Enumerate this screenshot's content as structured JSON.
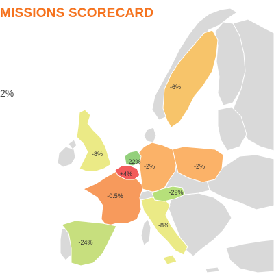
{
  "title": "MISSIONS SCORECARD",
  "side_fragment": "2%",
  "colors": {
    "background_land": "#d9d9d9",
    "sea": "#ffffff",
    "decrease_large": "#c7df7e",
    "decrease_medium": "#93d07c",
    "decrease_small": "#f7c46a",
    "slight_decrease": "#fbb268",
    "mild_decrease": "#f79a5c",
    "increase": "#f25b5b",
    "light_yellow": "#ebea86",
    "title": "#f5731f"
  },
  "regions": [
    {
      "name": "Sweden",
      "value": "-6%",
      "color": "#f7c46a"
    },
    {
      "name": "United Kingdom",
      "value": "-8%",
      "color": "#ebea86"
    },
    {
      "name": "Netherlands",
      "value": "-22%",
      "color": "#93d07c"
    },
    {
      "name": "Belgium",
      "value": "+4%",
      "color": "#f25b5b"
    },
    {
      "name": "Germany",
      "value": "-2%",
      "color": "#fbb268"
    },
    {
      "name": "Poland",
      "value": "-2%",
      "color": "#fbb268"
    },
    {
      "name": "France",
      "value": "-0.5%",
      "color": "#f79a5c"
    },
    {
      "name": "Austria",
      "value": "-29%",
      "color": "#b6e07a"
    },
    {
      "name": "Italy",
      "value": "-8%",
      "color": "#ebea86"
    },
    {
      "name": "Spain",
      "value": "-24%",
      "color": "#c7df7e"
    }
  ]
}
